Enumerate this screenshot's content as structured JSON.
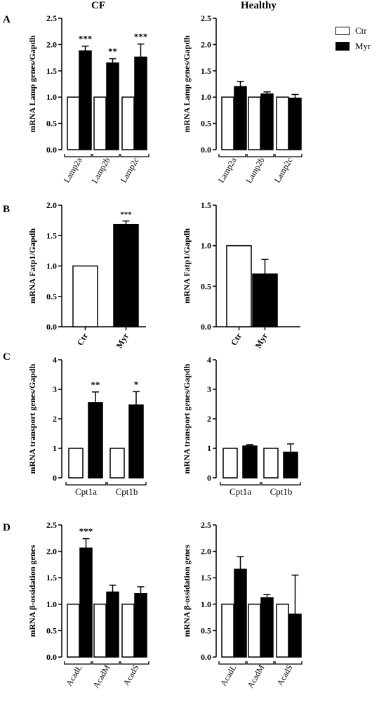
{
  "column_headers": [
    "CF",
    "Healthy"
  ],
  "panel_letters": [
    "A",
    "B",
    "C",
    "D"
  ],
  "legend": [
    {
      "label": "Ctr",
      "color": "#ffffff"
    },
    {
      "label": "Myr",
      "color": "#000000"
    }
  ],
  "colors": {
    "ctr": "#ffffff",
    "myr": "#000000",
    "stroke": "#000000"
  },
  "chart_data": [
    {
      "id": "A-CF",
      "type": "bar",
      "panel": "A",
      "column": "CF",
      "ylabel": "mRNA Lamp genes/Gapdh",
      "ylim": [
        0,
        2.5
      ],
      "yticks": [
        "0.0",
        "0.5",
        "1.0",
        "1.5",
        "2.0",
        "2.5"
      ],
      "categories": [
        "Lamp2a",
        "Lamp2b",
        "Lamp2c"
      ],
      "grouped_x_axis": true,
      "rotate_labels": true,
      "series": [
        {
          "name": "Ctr",
          "values": [
            1.0,
            1.0,
            1.0
          ],
          "errors": [
            0,
            0,
            0
          ]
        },
        {
          "name": "Myr",
          "values": [
            1.88,
            1.65,
            1.76
          ],
          "errors": [
            0.09,
            0.08,
            0.25
          ]
        }
      ],
      "annotations": [
        "***",
        "**",
        "***"
      ]
    },
    {
      "id": "A-H",
      "type": "bar",
      "panel": "A",
      "column": "Healthy",
      "ylabel": "mRNA Lamp genes/Gapdh",
      "ylim": [
        0,
        2.5
      ],
      "yticks": [
        "0.0",
        "0.5",
        "1.0",
        "1.5",
        "2.0",
        "2.5"
      ],
      "categories": [
        "Lamp2a",
        "Lamp2b",
        "Lamp2c"
      ],
      "grouped_x_axis": true,
      "rotate_labels": true,
      "series": [
        {
          "name": "Ctr",
          "values": [
            1.0,
            1.0,
            1.0
          ],
          "errors": [
            0,
            0,
            0
          ]
        },
        {
          "name": "Myr",
          "values": [
            1.2,
            1.06,
            0.98
          ],
          "errors": [
            0.1,
            0.04,
            0.07
          ]
        }
      ],
      "annotations": [
        "",
        "",
        ""
      ]
    },
    {
      "id": "B-CF",
      "type": "bar",
      "panel": "B",
      "column": "CF",
      "ylabel": "mRNA  Fatp1/Gapdh",
      "ylim": [
        0,
        2.0
      ],
      "yticks": [
        "0.0",
        "0.5",
        "1.0",
        "1.5",
        "2.0"
      ],
      "categories": [
        "Ctr",
        "Myr"
      ],
      "grouped_x_axis": false,
      "rotate_labels": true,
      "values": [
        1.0,
        1.68
      ],
      "errors": [
        0,
        0.06
      ],
      "annotations": [
        "",
        "***"
      ]
    },
    {
      "id": "B-H",
      "type": "bar",
      "panel": "B",
      "column": "Healthy",
      "ylabel": "mRNA  Fatp1/Gapdh",
      "ylim": [
        0,
        1.5
      ],
      "yticks": [
        "0.0",
        "0.5",
        "1.0",
        "1.5"
      ],
      "categories": [
        "Ctr",
        "Myr"
      ],
      "grouped_x_axis": false,
      "rotate_labels": true,
      "values": [
        1.0,
        0.65
      ],
      "errors": [
        0,
        0.18
      ],
      "annotations": [
        "",
        ""
      ]
    },
    {
      "id": "C-CF",
      "type": "bar",
      "panel": "C",
      "column": "CF",
      "ylabel": "mRNA transport genes/Gapdh",
      "ylim": [
        0,
        4
      ],
      "yticks": [
        "0",
        "1",
        "2",
        "3",
        "4"
      ],
      "categories": [
        "Cpt1a",
        "Cpt1b"
      ],
      "grouped_x_axis": true,
      "rotate_labels": false,
      "series": [
        {
          "name": "Ctr",
          "values": [
            1.0,
            1.0
          ],
          "errors": [
            0,
            0
          ]
        },
        {
          "name": "Myr",
          "values": [
            2.55,
            2.47
          ],
          "errors": [
            0.36,
            0.45
          ]
        }
      ],
      "annotations": [
        "**",
        "*"
      ]
    },
    {
      "id": "C-H",
      "type": "bar",
      "panel": "C",
      "column": "Healthy",
      "ylabel": "mRNA transport genes/Gapdh",
      "ylim": [
        0,
        4
      ],
      "yticks": [
        "0",
        "1",
        "2",
        "3",
        "4"
      ],
      "categories": [
        "Cpt1a",
        "Cpt1b"
      ],
      "grouped_x_axis": true,
      "rotate_labels": false,
      "series": [
        {
          "name": "Ctr",
          "values": [
            1.0,
            1.0
          ],
          "errors": [
            0,
            0
          ]
        },
        {
          "name": "Myr",
          "values": [
            1.08,
            0.87
          ],
          "errors": [
            0.04,
            0.28
          ]
        }
      ],
      "annotations": [
        "",
        ""
      ]
    },
    {
      "id": "D-CF",
      "type": "bar",
      "panel": "D",
      "column": "CF",
      "ylabel": "mRNA β-ossidation genes",
      "ylim": [
        0,
        2.5
      ],
      "yticks": [
        "0.0",
        "0.5",
        "1.0",
        "1.5",
        "2.0",
        "2.5"
      ],
      "categories": [
        "AcadL",
        "AcadM",
        "AcadS"
      ],
      "grouped_x_axis": true,
      "rotate_labels": true,
      "series": [
        {
          "name": "Ctr",
          "values": [
            1.0,
            1.0,
            1.0
          ],
          "errors": [
            0,
            0,
            0
          ]
        },
        {
          "name": "Myr",
          "values": [
            2.06,
            1.23,
            1.2
          ],
          "errors": [
            0.18,
            0.13,
            0.13
          ]
        }
      ],
      "annotations": [
        "***",
        "",
        ""
      ]
    },
    {
      "id": "D-H",
      "type": "bar",
      "panel": "D",
      "column": "Healthy",
      "ylabel": "mRNA β-ossidation genes",
      "ylim": [
        0,
        2.5
      ],
      "yticks": [
        "0.0",
        "0.5",
        "1.0",
        "1.5",
        "2.0",
        "2.5"
      ],
      "categories": [
        "AcadL",
        "AcadM",
        "AcadS"
      ],
      "grouped_x_axis": true,
      "rotate_labels": true,
      "series": [
        {
          "name": "Ctr",
          "values": [
            1.0,
            1.0,
            1.0
          ],
          "errors": [
            0,
            0,
            0
          ]
        },
        {
          "name": "Myr",
          "values": [
            1.66,
            1.12,
            0.81
          ],
          "errors": [
            0.24,
            0.06,
            0.74
          ]
        }
      ],
      "annotations": [
        "",
        "",
        ""
      ]
    }
  ]
}
